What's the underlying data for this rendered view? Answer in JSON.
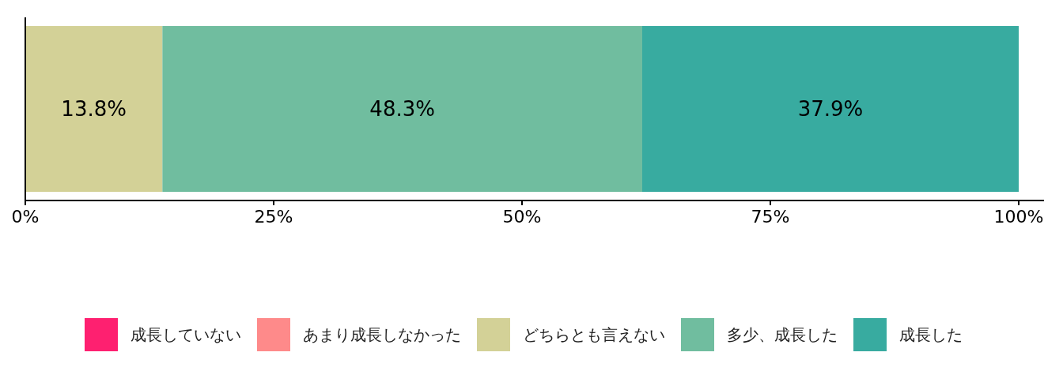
{
  "chart_data": {
    "type": "bar",
    "orientation": "horizontal",
    "stacked": true,
    "categories": [
      null
    ],
    "series": [
      {
        "name": "成長していない",
        "color": "#fe2070",
        "values": [
          0
        ],
        "value_labels": [
          null
        ]
      },
      {
        "name": "あまり成長しなかった",
        "color": "#fe8a8a",
        "values": [
          0
        ],
        "value_labels": [
          null
        ]
      },
      {
        "name": "どちらとも言えない",
        "color": "#d3d197",
        "values": [
          13.8
        ],
        "value_labels": [
          "13.8%"
        ]
      },
      {
        "name": "多少、成長した",
        "color": "#70bd9f",
        "values": [
          48.3
        ],
        "value_labels": [
          "48.3%"
        ]
      },
      {
        "name": "成長した",
        "color": "#38aba0",
        "values": [
          37.9
        ],
        "value_labels": [
          "37.9%"
        ]
      }
    ],
    "xlim": [
      0,
      100
    ],
    "xticks": [
      {
        "value": 0,
        "label": "0%"
      },
      {
        "value": 25,
        "label": "25%"
      },
      {
        "value": 50,
        "label": "50%"
      },
      {
        "value": 75,
        "label": "75%"
      },
      {
        "value": 100,
        "label": "100%"
      }
    ],
    "legend": "bottom"
  }
}
